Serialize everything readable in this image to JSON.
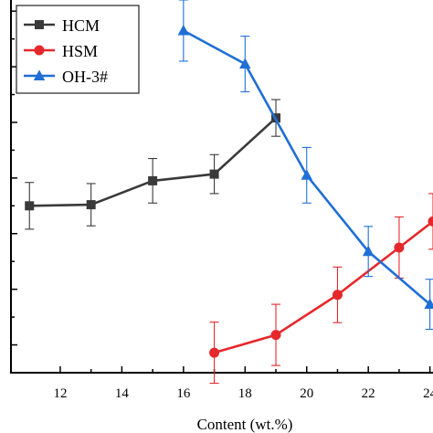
{
  "chart_data": {
    "type": "line",
    "title": "",
    "xlabel": "Content (wt.%)",
    "ylabel": "",
    "xlim": [
      10.4,
      24.1
    ],
    "ylim": [
      0.5,
      7.2
    ],
    "x_ticks": [
      12,
      14,
      16,
      18,
      20,
      22,
      24
    ],
    "x_tick_labels": [
      "12",
      "14",
      "16",
      "18",
      "20",
      "22",
      "24"
    ],
    "y_minor_ticks": [
      1,
      1.5,
      2,
      2.5,
      3,
      3.5,
      4,
      4.5,
      5,
      5.5,
      6,
      6.5,
      7
    ],
    "grid": false,
    "legend_position": "top-left",
    "series": [
      {
        "name": "HCM",
        "color": "#3a3a3a",
        "marker": "square",
        "x": [
          11,
          13,
          15,
          17,
          19
        ],
        "y": [
          3.5,
          3.52,
          3.95,
          4.07,
          5.08
        ],
        "err": [
          0.42,
          0.38,
          0.4,
          0.35,
          0.33
        ]
      },
      {
        "name": "HSM",
        "color": "#e5282c",
        "marker": "circle",
        "x": [
          17,
          19,
          21,
          23,
          24.1
        ],
        "y": [
          0.86,
          1.18,
          1.9,
          2.75,
          3.22
        ],
        "err": [
          0.55,
          0.55,
          0.5,
          0.55,
          0.5
        ]
      },
      {
        "name": "OH-3#",
        "color": "#1f6fd6",
        "marker": "triangle",
        "x": [
          16,
          18,
          20,
          22,
          24
        ],
        "y": [
          6.65,
          6.05,
          4.05,
          2.68,
          1.73
        ],
        "err": [
          0.55,
          0.5,
          0.5,
          0.45,
          0.45
        ]
      }
    ]
  }
}
